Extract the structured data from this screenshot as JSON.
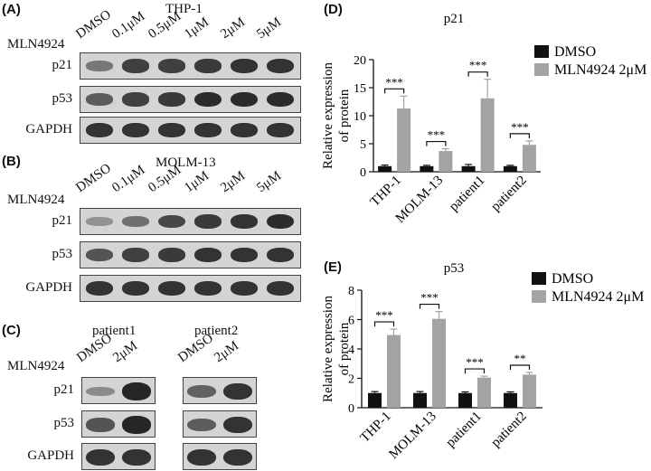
{
  "panels": {
    "A": {
      "label": "(A)",
      "title": "THP-1",
      "treatment": "MLN4924",
      "lanes": [
        "DMSO",
        "0.1μM",
        "0.5μM",
        "1μM",
        "2μM",
        "5μM"
      ],
      "rows": [
        {
          "name": "p21",
          "intensity": [
            0.35,
            0.75,
            0.75,
            0.8,
            0.85,
            0.85
          ]
        },
        {
          "name": "p53",
          "intensity": [
            0.55,
            0.75,
            0.8,
            0.9,
            0.9,
            0.9
          ]
        },
        {
          "name": "GAPDH",
          "intensity": [
            0.85,
            0.85,
            0.85,
            0.85,
            0.85,
            0.85
          ]
        }
      ]
    },
    "B": {
      "label": "(B)",
      "title": "MOLM-13",
      "treatment": "MLN4924",
      "lanes": [
        "DMSO",
        "0.1μM",
        "0.5μM",
        "1μM",
        "2μM",
        "5μM"
      ],
      "rows": [
        {
          "name": "p21",
          "intensity": [
            0.15,
            0.4,
            0.7,
            0.8,
            0.85,
            0.9
          ]
        },
        {
          "name": "p53",
          "intensity": [
            0.6,
            0.75,
            0.8,
            0.85,
            0.85,
            0.85
          ]
        },
        {
          "name": "GAPDH",
          "intensity": [
            0.85,
            0.85,
            0.85,
            0.85,
            0.85,
            0.85
          ]
        }
      ]
    },
    "C": {
      "label": "(C)",
      "treatment": "MLN4924",
      "groups": [
        {
          "title": "patient1",
          "lanes": [
            "DMSO",
            "2μM"
          ],
          "intensity": {
            "p21": [
              0.2,
              0.95
            ],
            "p53": [
              0.6,
              0.95
            ],
            "GAPDH": [
              0.85,
              0.85
            ]
          }
        },
        {
          "title": "patient2",
          "lanes": [
            "DMSO",
            "2μM"
          ],
          "intensity": {
            "p21": [
              0.5,
              0.85
            ],
            "p53": [
              0.55,
              0.85
            ],
            "GAPDH": [
              0.85,
              0.85
            ]
          }
        }
      ],
      "row_names": [
        "p21",
        "p53",
        "GAPDH"
      ]
    },
    "D": {
      "label": "(D)"
    },
    "E": {
      "label": "(E)"
    }
  },
  "colors": {
    "dmso": "#111111",
    "mln": "#a3a3a3"
  },
  "chart_data": [
    {
      "type": "bar",
      "panel": "D",
      "title": "p21",
      "ylabel": "Relative expression of protein",
      "ylabel_lines": [
        "Relative expression",
        "of protein"
      ],
      "categories": [
        "THP-1",
        "MOLM-13",
        "patient1",
        "patient2"
      ],
      "series": [
        {
          "name": "DMSO",
          "values": [
            1.0,
            1.0,
            1.0,
            1.0
          ],
          "errors": [
            0.2,
            0.15,
            0.3,
            0.15
          ]
        },
        {
          "name": "MLN4924 2μM",
          "values": [
            11.3,
            3.7,
            13.1,
            4.8
          ],
          "errors": [
            2.2,
            0.4,
            3.4,
            0.7
          ]
        }
      ],
      "significance": [
        "***",
        "***",
        "***",
        "***"
      ],
      "ylim": [
        0,
        20
      ],
      "yticks": [
        0,
        5,
        10,
        15,
        20
      ],
      "grid": false,
      "legend": "top-right"
    },
    {
      "type": "bar",
      "panel": "E",
      "title": "p53",
      "ylabel": "Relative expression of protein",
      "ylabel_lines": [
        "Relative expression",
        "of protein"
      ],
      "categories": [
        "THP-1",
        "MOLM-13",
        "patient1",
        "patient2"
      ],
      "series": [
        {
          "name": "DMSO",
          "values": [
            1.0,
            1.0,
            1.0,
            1.0
          ],
          "errors": [
            0.1,
            0.1,
            0.08,
            0.08
          ]
        },
        {
          "name": "MLN4924 2μM",
          "values": [
            4.95,
            6.05,
            2.05,
            2.25
          ],
          "errors": [
            0.4,
            0.5,
            0.1,
            0.15
          ]
        }
      ],
      "significance": [
        "***",
        "***",
        "***",
        "**"
      ],
      "ylim": [
        0,
        8
      ],
      "yticks": [
        0,
        2,
        4,
        6,
        8
      ],
      "grid": false,
      "legend": "top-right"
    }
  ]
}
